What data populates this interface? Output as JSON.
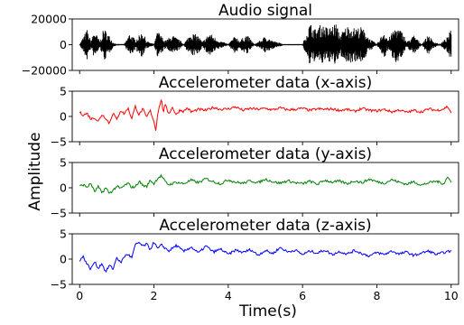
{
  "figure": {
    "ylabel": "Amplitude",
    "xlabel": "Time(s)"
  },
  "chart_data": [
    {
      "type": "line",
      "title": "Audio signal",
      "xlabel": "",
      "ylabel": "",
      "xlim": [
        -0.2,
        10.2
      ],
      "ylim": [
        -20000,
        20000
      ],
      "yticks": [
        20000,
        0,
        -20000
      ],
      "ytick_labels": [
        "20000",
        "0",
        "−20000"
      ],
      "grid": false,
      "series": [
        {
          "name": "",
          "color": "#000000",
          "style": "dense_envelope",
          "x": [
            0,
            0.2,
            0.3,
            0.4,
            0.55,
            0.65,
            0.8,
            0.9,
            1.0,
            1.2,
            1.35,
            1.5,
            1.7,
            1.8,
            2.0,
            2.1,
            2.3,
            2.5,
            2.7,
            2.8,
            3.0,
            3.2,
            3.3,
            3.5,
            3.7,
            4.0,
            4.2,
            4.3,
            4.5,
            4.7,
            4.9,
            5.0,
            5.2,
            5.5,
            5.8,
            6.0,
            6.2,
            6.35,
            6.5,
            6.7,
            6.9,
            7.0,
            7.2,
            7.4,
            7.6,
            7.8,
            8.0,
            8.2,
            8.3,
            8.5,
            8.7,
            8.8,
            9.0,
            9.2,
            9.4,
            9.5,
            9.7,
            9.9,
            10.0
          ],
          "envelope": [
            500,
            12000,
            3000,
            11000,
            2500,
            13000,
            7000,
            2000,
            500,
            500,
            9000,
            4000,
            10500,
            3000,
            500,
            11000,
            3000,
            7500,
            3500,
            500,
            9500,
            7000,
            2000,
            9500,
            4000,
            500,
            7500,
            3000,
            8000,
            500,
            4000,
            7000,
            3000,
            500,
            400,
            500,
            17000,
            12000,
            16000,
            13000,
            17000,
            8000,
            15000,
            13000,
            14000,
            5000,
            500,
            11000,
            4000,
            14000,
            10000,
            2000,
            7500,
            500,
            8000,
            3000,
            500,
            6000,
            12000
          ]
        }
      ]
    },
    {
      "type": "line",
      "title": "Accelerometer data (x-axis)",
      "xlabel": "",
      "ylabel": "",
      "xlim": [
        -0.2,
        10.2
      ],
      "ylim": [
        -5,
        5
      ],
      "yticks": [
        5,
        0,
        -5
      ],
      "ytick_labels": [
        "5",
        "0",
        "−5"
      ],
      "grid": false,
      "series": [
        {
          "name": "",
          "color": "#ff0000",
          "x": [
            0,
            0.1,
            0.2,
            0.3,
            0.4,
            0.5,
            0.6,
            0.7,
            0.8,
            0.9,
            1.0,
            1.1,
            1.2,
            1.3,
            1.4,
            1.5,
            1.6,
            1.7,
            1.8,
            1.9,
            2.0,
            2.05,
            2.1,
            2.2,
            2.25,
            2.3,
            2.4,
            2.5,
            2.6,
            2.7,
            2.8,
            2.9,
            3.0,
            3.2,
            3.4,
            3.6,
            3.8,
            4.0,
            4.2,
            4.4,
            4.6,
            4.8,
            5.0,
            5.2,
            5.4,
            5.6,
            5.8,
            6.0,
            6.2,
            6.4,
            6.6,
            6.8,
            7.0,
            7.2,
            7.4,
            7.6,
            7.8,
            8.0,
            8.2,
            8.4,
            8.6,
            8.8,
            9.0,
            9.2,
            9.4,
            9.6,
            9.8,
            9.9,
            10.0
          ],
          "y": [
            0.8,
            0.3,
            0.6,
            -0.5,
            -0.2,
            -1.0,
            0.4,
            -0.3,
            -1.4,
            0.8,
            -0.7,
            1.2,
            0.5,
            1.7,
            -0.4,
            2.0,
            0.3,
            1.5,
            -0.2,
            1.2,
            -1.0,
            -2.8,
            0.6,
            3.5,
            0.8,
            2.3,
            0.6,
            1.8,
            0.3,
            1.3,
            1.0,
            1.7,
            0.9,
            1.4,
            1.2,
            1.8,
            1.4,
            1.5,
            1.9,
            1.2,
            1.6,
            1.4,
            1.6,
            1.3,
            1.7,
            1.3,
            1.4,
            1.6,
            1.2,
            1.5,
            1.4,
            1.5,
            1.2,
            1.4,
            1.0,
            1.6,
            1.2,
            1.1,
            1.4,
            0.9,
            1.3,
            0.8,
            1.2,
            0.9,
            1.5,
            1.2,
            1.5,
            2.0,
            0.8
          ]
        }
      ]
    },
    {
      "type": "line",
      "title": "Accelerometer data (y-axis)",
      "xlabel": "",
      "ylabel": "",
      "xlim": [
        -0.2,
        10.2
      ],
      "ylim": [
        -5,
        5
      ],
      "yticks": [
        5,
        0,
        -5
      ],
      "ytick_labels": [
        "5",
        "0",
        "−5"
      ],
      "grid": false,
      "series": [
        {
          "name": "",
          "color": "#008000",
          "x": [
            0,
            0.1,
            0.2,
            0.3,
            0.4,
            0.5,
            0.6,
            0.7,
            0.8,
            0.9,
            1.0,
            1.1,
            1.2,
            1.3,
            1.4,
            1.5,
            1.6,
            1.7,
            1.8,
            1.9,
            2.0,
            2.1,
            2.2,
            2.3,
            2.4,
            2.6,
            2.8,
            3.0,
            3.2,
            3.4,
            3.6,
            3.8,
            4.0,
            4.2,
            4.4,
            4.6,
            4.8,
            5.0,
            5.2,
            5.4,
            5.6,
            5.8,
            6.0,
            6.2,
            6.4,
            6.6,
            6.8,
            7.0,
            7.2,
            7.4,
            7.6,
            7.8,
            8.0,
            8.2,
            8.4,
            8.6,
            8.8,
            9.0,
            9.2,
            9.4,
            9.6,
            9.8,
            9.9,
            10.0
          ],
          "y": [
            0.3,
            0.6,
            0.1,
            0.9,
            -0.8,
            0.2,
            -1.0,
            0.0,
            -1.1,
            -0.5,
            0.3,
            -0.2,
            0.4,
            0.9,
            0.1,
            0.2,
            1.3,
            0.5,
            0.2,
            1.5,
            0.8,
            1.9,
            2.4,
            1.2,
            0.6,
            1.1,
            0.8,
            1.5,
            1.0,
            1.8,
            1.2,
            0.8,
            1.6,
            1.1,
            0.9,
            1.4,
            1.0,
            1.7,
            1.2,
            0.9,
            1.4,
            1.0,
            0.8,
            1.3,
            0.7,
            1.5,
            1.1,
            1.3,
            0.8,
            1.4,
            1.0,
            1.7,
            1.2,
            0.9,
            1.6,
            1.1,
            0.7,
            1.2,
            0.5,
            1.0,
            1.3,
            0.8,
            2.1,
            1.2
          ]
        }
      ]
    },
    {
      "type": "line",
      "title": "Accelerometer data (z-axis)",
      "xlabel": "",
      "ylabel": "",
      "xlim": [
        -0.2,
        10.2
      ],
      "ylim": [
        -5,
        5
      ],
      "yticks": [
        5,
        0,
        -5
      ],
      "ytick_labels": [
        "5",
        "0",
        "−5"
      ],
      "xticks": [
        0,
        2,
        4,
        6,
        8,
        10
      ],
      "xtick_labels": [
        "0",
        "2",
        "4",
        "6",
        "8",
        "10"
      ],
      "grid": false,
      "series": [
        {
          "name": "",
          "color": "#0000ff",
          "x": [
            0,
            0.1,
            0.2,
            0.3,
            0.4,
            0.5,
            0.6,
            0.7,
            0.8,
            0.9,
            1.0,
            1.1,
            1.2,
            1.3,
            1.4,
            1.5,
            1.6,
            1.7,
            1.8,
            1.9,
            2.0,
            2.1,
            2.2,
            2.4,
            2.6,
            2.8,
            3.0,
            3.2,
            3.4,
            3.6,
            3.8,
            4.0,
            4.2,
            4.4,
            4.6,
            4.8,
            5.0,
            5.2,
            5.4,
            5.6,
            5.8,
            6.0,
            6.2,
            6.4,
            6.6,
            6.8,
            7.0,
            7.2,
            7.4,
            7.6,
            7.8,
            8.0,
            8.2,
            8.4,
            8.6,
            8.8,
            9.0,
            9.2,
            9.4,
            9.6,
            9.8,
            10.0
          ],
          "y": [
            -0.2,
            0.5,
            -1.0,
            -2.0,
            -0.5,
            -1.8,
            -0.8,
            -2.6,
            -1.2,
            -2.0,
            0.4,
            -0.8,
            0.5,
            1.0,
            0.2,
            2.8,
            3.3,
            2.5,
            3.0,
            1.9,
            3.4,
            2.0,
            2.8,
            1.6,
            2.7,
            1.5,
            2.4,
            1.2,
            2.6,
            1.4,
            2.0,
            0.9,
            1.8,
            1.3,
            1.9,
            0.8,
            1.7,
            1.1,
            2.3,
            1.4,
            1.8,
            0.9,
            1.6,
            1.2,
            1.8,
            0.9,
            1.5,
            1.0,
            1.7,
            1.1,
            0.6,
            1.3,
            0.9,
            1.6,
            1.0,
            1.4,
            0.7,
            1.2,
            1.6,
            0.9,
            1.3,
            1.6
          ]
        }
      ]
    }
  ]
}
